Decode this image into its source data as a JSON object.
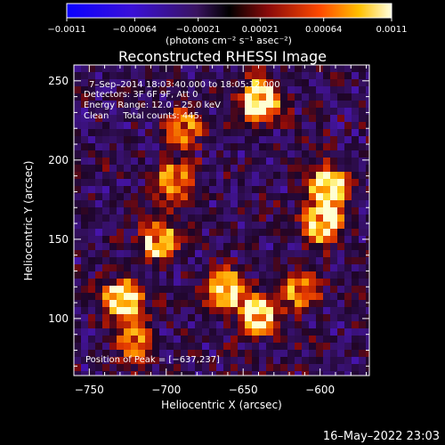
{
  "chart_data": {
    "type": "heatmap",
    "title": "Reconstructed RHESSI Image",
    "xlabel": "Heliocentric X (arcsec)",
    "ylabel": "Heliocentric Y (arcsec)",
    "xlim": [
      -760,
      -568
    ],
    "ylim": [
      64,
      260
    ],
    "x_ticks": [
      -750,
      -700,
      -650,
      -600
    ],
    "x_tick_labels": [
      "−750",
      "−700",
      "−650",
      "−600"
    ],
    "y_ticks": [
      100,
      150,
      200,
      250
    ],
    "y_tick_labels": [
      "100",
      "150",
      "200",
      "250"
    ],
    "colorbar": {
      "range": [
        -0.0011,
        0.0011
      ],
      "ticks": [
        -0.0011,
        -0.00064,
        -0.00021,
        0.00021,
        0.00064,
        0.0011
      ],
      "tick_labels": [
        "−0.0011",
        "−0.00064",
        "−0.00021",
        "0.00021",
        "0.00064",
        "0.0011"
      ],
      "units": "(photons cm⁻² s⁻¹ asec⁻²)"
    },
    "annotations": [
      "7–Sep–2014 18:03:40.000 to 18:05:12.000",
      "Detectors: 3F 6F 9F, Att 0",
      "Energy Range: 12.0 – 25.0 keV",
      "Clean     Total counts: 445.",
      "Position of Peak = [−637,237]"
    ],
    "peak_position": [
      -637,
      237
    ],
    "grid": false,
    "hotspots": [
      {
        "x": -640,
        "y": 237,
        "intensity": 1.0
      },
      {
        "x": -595,
        "y": 182,
        "intensity": 0.95
      },
      {
        "x": -598,
        "y": 160,
        "intensity": 0.85
      },
      {
        "x": -705,
        "y": 150,
        "intensity": 0.7
      },
      {
        "x": -728,
        "y": 112,
        "intensity": 0.85
      },
      {
        "x": -640,
        "y": 102,
        "intensity": 0.95
      },
      {
        "x": -662,
        "y": 118,
        "intensity": 0.8
      },
      {
        "x": -695,
        "y": 188,
        "intensity": 0.6
      },
      {
        "x": -612,
        "y": 118,
        "intensity": 0.6
      },
      {
        "x": -720,
        "y": 85,
        "intensity": 0.55
      },
      {
        "x": -688,
        "y": 220,
        "intensity": 0.5
      }
    ]
  },
  "footer": {
    "timestamp": "16–May–2022 23:03"
  }
}
